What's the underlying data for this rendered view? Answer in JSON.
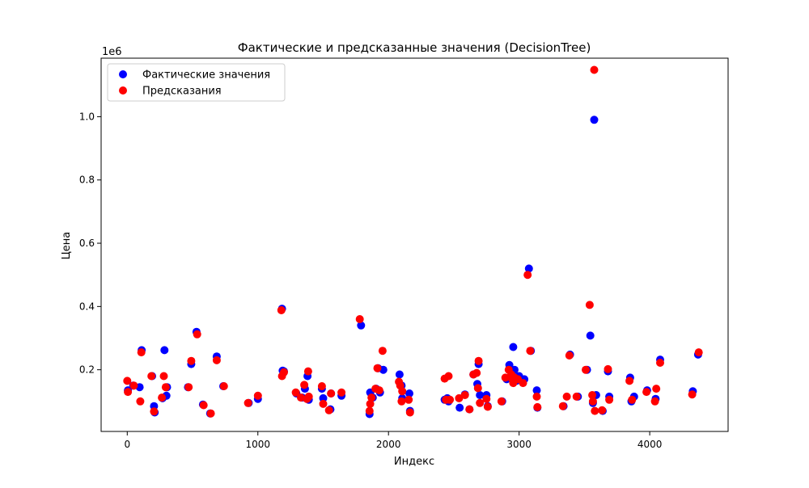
{
  "chart_data": {
    "type": "scatter",
    "title": "Фактические и предсказанные значения (DecisionTree)",
    "xlabel": "Индекс",
    "ylabel": "Цена",
    "y_offset_label": "1e6",
    "xlim": [
      -200,
      4600
    ],
    "ylim": [
      5000,
      1185000
    ],
    "x_ticks": [
      0,
      1000,
      2000,
      3000,
      4000
    ],
    "x_tick_labels": [
      "0",
      "1000",
      "2000",
      "3000",
      "4000"
    ],
    "y_ticks": [
      200000,
      400000,
      600000,
      800000,
      1000000
    ],
    "y_tick_labels": [
      "0.2",
      "0.4",
      "0.6",
      "0.8",
      "1.0"
    ],
    "grid": false,
    "legend_position": "upper-left",
    "series": [
      {
        "name": "Фактические значения",
        "color": "#0000ff",
        "points": [
          [
            5,
            135000
          ],
          [
            45,
            150000
          ],
          [
            95,
            145000
          ],
          [
            110,
            262000
          ],
          [
            190,
            180000
          ],
          [
            205,
            85000
          ],
          [
            210,
            65000
          ],
          [
            270,
            110000
          ],
          [
            285,
            262000
          ],
          [
            300,
            118000
          ],
          [
            305,
            145000
          ],
          [
            465,
            145000
          ],
          [
            490,
            218000
          ],
          [
            530,
            320000
          ],
          [
            580,
            90000
          ],
          [
            635,
            62000
          ],
          [
            685,
            242000
          ],
          [
            735,
            148000
          ],
          [
            930,
            95000
          ],
          [
            1000,
            108000
          ],
          [
            1185,
            393000
          ],
          [
            1190,
            197000
          ],
          [
            1200,
            195000
          ],
          [
            1295,
            125000
          ],
          [
            1340,
            112000
          ],
          [
            1360,
            140000
          ],
          [
            1380,
            180000
          ],
          [
            1390,
            105000
          ],
          [
            1490,
            140000
          ],
          [
            1500,
            110000
          ],
          [
            1555,
            75000
          ],
          [
            1560,
            125000
          ],
          [
            1640,
            118000
          ],
          [
            1790,
            340000
          ],
          [
            1855,
            60000
          ],
          [
            1860,
            128000
          ],
          [
            1880,
            112000
          ],
          [
            1905,
            140000
          ],
          [
            1920,
            205000
          ],
          [
            1935,
            128000
          ],
          [
            1960,
            200000
          ],
          [
            2085,
            185000
          ],
          [
            2100,
            150000
          ],
          [
            2105,
            110000
          ],
          [
            2160,
            125000
          ],
          [
            2165,
            70000
          ],
          [
            2430,
            105000
          ],
          [
            2450,
            110000
          ],
          [
            2460,
            100000
          ],
          [
            2545,
            80000
          ],
          [
            2585,
            122000
          ],
          [
            2620,
            75000
          ],
          [
            2650,
            185000
          ],
          [
            2680,
            155000
          ],
          [
            2690,
            218000
          ],
          [
            2700,
            120000
          ],
          [
            2750,
            120000
          ],
          [
            2760,
            85000
          ],
          [
            2870,
            100000
          ],
          [
            2905,
            170000
          ],
          [
            2925,
            215000
          ],
          [
            2955,
            272000
          ],
          [
            2965,
            200000
          ],
          [
            2980,
            165000
          ],
          [
            3000,
            180000
          ],
          [
            3040,
            170000
          ],
          [
            3075,
            520000
          ],
          [
            3090,
            260000
          ],
          [
            3135,
            135000
          ],
          [
            3140,
            80000
          ],
          [
            3340,
            85000
          ],
          [
            3390,
            248000
          ],
          [
            3450,
            115000
          ],
          [
            3520,
            200000
          ],
          [
            3545,
            308000
          ],
          [
            3565,
            95000
          ],
          [
            3575,
            990000
          ],
          [
            3590,
            120000
          ],
          [
            3640,
            70000
          ],
          [
            3680,
            195000
          ],
          [
            3690,
            115000
          ],
          [
            3850,
            175000
          ],
          [
            3860,
            100000
          ],
          [
            3880,
            115000
          ],
          [
            3980,
            135000
          ],
          [
            4045,
            108000
          ],
          [
            4080,
            232000
          ],
          [
            4330,
            132000
          ],
          [
            4370,
            248000
          ]
        ]
      },
      {
        "name": "Предсказания",
        "color": "#ff0000",
        "points": [
          [
            0,
            165000
          ],
          [
            5,
            130000
          ],
          [
            50,
            150000
          ],
          [
            100,
            100000
          ],
          [
            108,
            255000
          ],
          [
            185,
            180000
          ],
          [
            205,
            68000
          ],
          [
            265,
            112000
          ],
          [
            280,
            180000
          ],
          [
            295,
            145000
          ],
          [
            470,
            145000
          ],
          [
            490,
            228000
          ],
          [
            535,
            312000
          ],
          [
            585,
            88000
          ],
          [
            640,
            62000
          ],
          [
            685,
            230000
          ],
          [
            740,
            148000
          ],
          [
            925,
            95000
          ],
          [
            1000,
            118000
          ],
          [
            1180,
            388000
          ],
          [
            1185,
            180000
          ],
          [
            1200,
            192000
          ],
          [
            1290,
            128000
          ],
          [
            1330,
            112000
          ],
          [
            1355,
            152000
          ],
          [
            1375,
            108000
          ],
          [
            1385,
            195000
          ],
          [
            1390,
            115000
          ],
          [
            1490,
            148000
          ],
          [
            1500,
            92000
          ],
          [
            1545,
            72000
          ],
          [
            1560,
            125000
          ],
          [
            1640,
            128000
          ],
          [
            1780,
            360000
          ],
          [
            1855,
            70000
          ],
          [
            1860,
            92000
          ],
          [
            1870,
            112000
          ],
          [
            1900,
            140000
          ],
          [
            1915,
            205000
          ],
          [
            1930,
            135000
          ],
          [
            1955,
            260000
          ],
          [
            2080,
            162000
          ],
          [
            2090,
            150000
          ],
          [
            2100,
            100000
          ],
          [
            2105,
            132000
          ],
          [
            2155,
            105000
          ],
          [
            2165,
            65000
          ],
          [
            2430,
            172000
          ],
          [
            2440,
            105000
          ],
          [
            2460,
            180000
          ],
          [
            2470,
            105000
          ],
          [
            2540,
            110000
          ],
          [
            2585,
            120000
          ],
          [
            2620,
            75000
          ],
          [
            2650,
            185000
          ],
          [
            2675,
            190000
          ],
          [
            2685,
            142000
          ],
          [
            2690,
            228000
          ],
          [
            2700,
            95000
          ],
          [
            2750,
            108000
          ],
          [
            2760,
            83000
          ],
          [
            2865,
            100000
          ],
          [
            2895,
            175000
          ],
          [
            2920,
            200000
          ],
          [
            2940,
            185000
          ],
          [
            2950,
            168000
          ],
          [
            2955,
            158000
          ],
          [
            2965,
            175000
          ],
          [
            2990,
            170000
          ],
          [
            3030,
            158000
          ],
          [
            3065,
            500000
          ],
          [
            3085,
            260000
          ],
          [
            3135,
            115000
          ],
          [
            3140,
            82000
          ],
          [
            3335,
            85000
          ],
          [
            3365,
            115000
          ],
          [
            3385,
            245000
          ],
          [
            3440,
            115000
          ],
          [
            3510,
            200000
          ],
          [
            3540,
            405000
          ],
          [
            3560,
            120000
          ],
          [
            3565,
            100000
          ],
          [
            3575,
            1148000
          ],
          [
            3580,
            70000
          ],
          [
            3635,
            72000
          ],
          [
            3680,
            202000
          ],
          [
            3690,
            105000
          ],
          [
            3845,
            165000
          ],
          [
            3865,
            105000
          ],
          [
            3975,
            130000
          ],
          [
            4040,
            100000
          ],
          [
            4050,
            140000
          ],
          [
            4080,
            222000
          ],
          [
            4325,
            122000
          ],
          [
            4375,
            255000
          ]
        ]
      }
    ]
  }
}
